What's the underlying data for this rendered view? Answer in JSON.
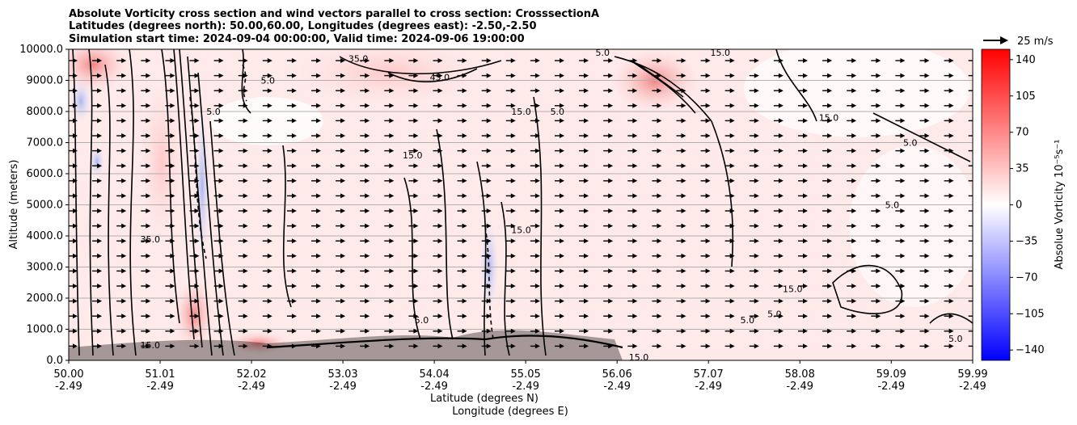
{
  "chart_data": {
    "type": "heatmap",
    "title_lines": [
      "Absolute Vorticity cross section and wind vectors parallel to cross section: CrosssectionA",
      "Latitudes (degrees north): 50.00,60.00, Longitudes (degrees east): -2.50,-2.50",
      "Simulation start time: 2024-09-04 00:00:00, Valid time: 2024-09-06 19:00:00"
    ],
    "xlabel_lines": [
      "Latitude (degrees N)",
      "Longitude (degrees E)"
    ],
    "ylabel": "Altitude (meters)",
    "x_ticks": [
      {
        "lat": "50.00",
        "lon": "-2.49"
      },
      {
        "lat": "51.01",
        "lon": "-2.49"
      },
      {
        "lat": "52.02",
        "lon": "-2.49"
      },
      {
        "lat": "53.03",
        "lon": "-2.49"
      },
      {
        "lat": "54.04",
        "lon": "-2.49"
      },
      {
        "lat": "55.05",
        "lon": "-2.49"
      },
      {
        "lat": "56.06",
        "lon": "-2.49"
      },
      {
        "lat": "57.07",
        "lon": "-2.49"
      },
      {
        "lat": "58.08",
        "lon": "-2.49"
      },
      {
        "lat": "59.09",
        "lon": "-2.49"
      },
      {
        "lat": "59.99",
        "lon": "-2.49"
      }
    ],
    "x_range": [
      50.0,
      59.99
    ],
    "y_ticks": [
      "0.0",
      "1000.0",
      "2000.0",
      "3000.0",
      "4000.0",
      "5000.0",
      "6000.0",
      "7000.0",
      "8000.0",
      "9000.0",
      "10000.0"
    ],
    "y_range": [
      0,
      10000
    ],
    "y_grid": true,
    "colorbar": {
      "label": "Absolue Vorticity 10⁻⁵s⁻¹",
      "ticks": [
        "−140",
        "−105",
        "−70",
        "−35",
        "0",
        "35",
        "70",
        "105",
        "140"
      ],
      "tick_values": [
        -140,
        -105,
        -70,
        -35,
        0,
        35,
        70,
        105,
        140
      ],
      "range": [
        -150,
        150
      ],
      "color_low": "#0000ff",
      "color_mid": "#ffffff",
      "color_high": "#ff0000"
    },
    "quiver_key": {
      "label": "25 m/s",
      "speed": 25
    },
    "contour_labels": [
      {
        "text": "35.0",
        "lat": 53.2,
        "alt": 9700
      },
      {
        "text": "45.0",
        "lat": 54.1,
        "alt": 9100
      },
      {
        "text": "15.0",
        "lat": 57.2,
        "alt": 9900
      },
      {
        "text": "5.0",
        "lat": 55.9,
        "alt": 9900
      },
      {
        "text": "5.0",
        "lat": 52.2,
        "alt": 9000
      },
      {
        "text": "5.0",
        "lat": 51.6,
        "alt": 8000
      },
      {
        "text": "5.0",
        "lat": 55.4,
        "alt": 8000
      },
      {
        "text": "15.0",
        "lat": 55.0,
        "alt": 8000
      },
      {
        "text": "15.0",
        "lat": 58.4,
        "alt": 7800
      },
      {
        "text": "5.0",
        "lat": 59.3,
        "alt": 7000
      },
      {
        "text": "15.0",
        "lat": 53.8,
        "alt": 6600
      },
      {
        "text": "5.0",
        "lat": 59.1,
        "alt": 5000
      },
      {
        "text": "15.0",
        "lat": 55.0,
        "alt": 4200
      },
      {
        "text": "35.0",
        "lat": 50.9,
        "alt": 3900
      },
      {
        "text": "15.0",
        "lat": 58.0,
        "alt": 2300
      },
      {
        "text": "5.0",
        "lat": 53.9,
        "alt": 1300
      },
      {
        "text": "5.0",
        "lat": 57.5,
        "alt": 1300
      },
      {
        "text": "5.0",
        "lat": 57.8,
        "alt": 1500
      },
      {
        "text": "5.0",
        "lat": 59.8,
        "alt": 700
      },
      {
        "text": "15.0",
        "lat": 56.3,
        "alt": 100
      },
      {
        "text": "15.0",
        "lat": 50.9,
        "alt": 500
      }
    ]
  }
}
